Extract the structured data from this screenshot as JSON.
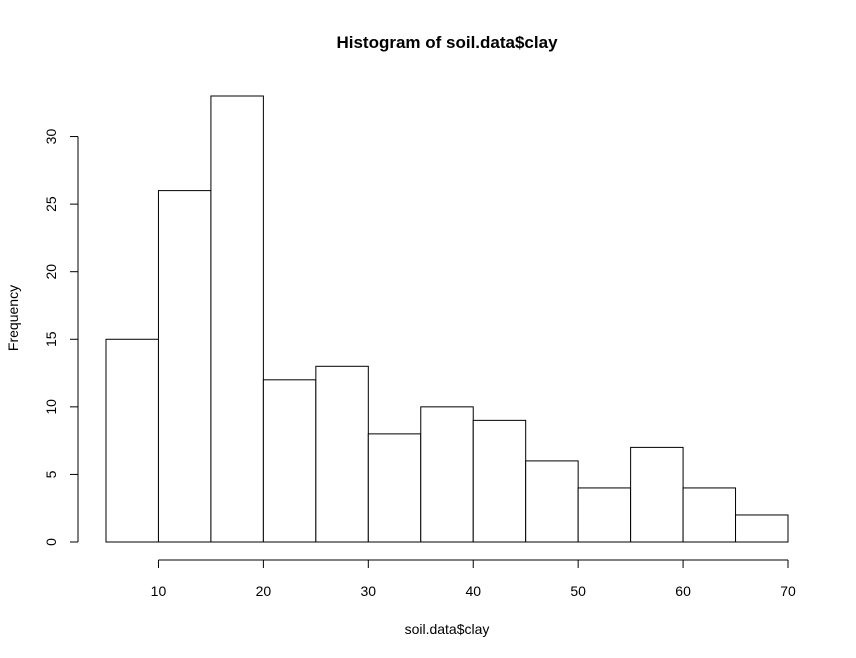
{
  "chart_data": {
    "type": "bar",
    "title": "Histogram of soil.data$clay",
    "xlabel": "soil.data$clay",
    "ylabel": "Frequency",
    "bin_edges": [
      5,
      10,
      15,
      20,
      25,
      30,
      35,
      40,
      45,
      50,
      55,
      60,
      65,
      70
    ],
    "values": [
      15,
      26,
      33,
      12,
      13,
      8,
      10,
      9,
      6,
      4,
      7,
      4,
      2
    ],
    "xlim": [
      5,
      70
    ],
    "ylim": [
      0,
      33
    ],
    "x_ticks": [
      10,
      20,
      30,
      40,
      50,
      60,
      70
    ],
    "y_ticks": [
      0,
      5,
      10,
      15,
      20,
      25,
      30
    ],
    "grid": false,
    "legend": "none",
    "colors": {
      "bar_fill": "#ffffff",
      "bar_stroke": "#000000",
      "axis": "#000000",
      "background": "#ffffff"
    }
  }
}
